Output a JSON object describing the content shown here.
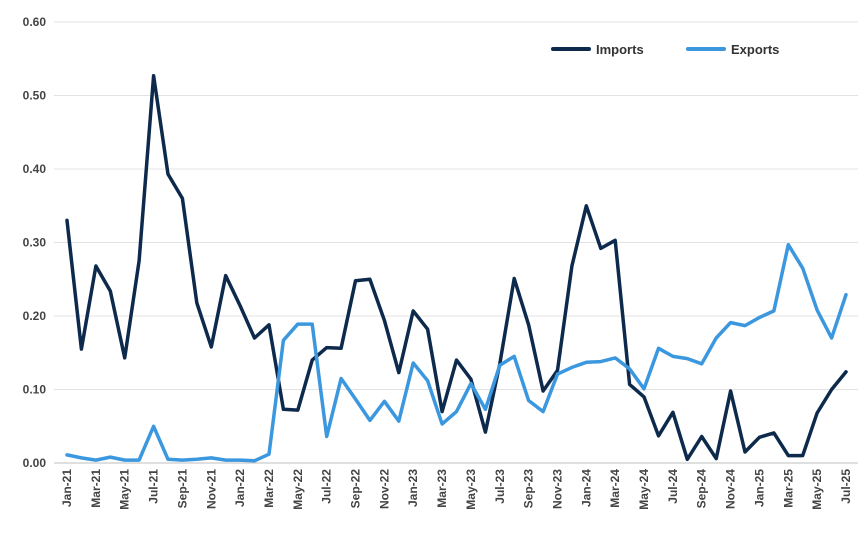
{
  "chart_data": {
    "type": "line",
    "title": "",
    "xlabel": "",
    "ylabel": "",
    "ylim": [
      0,
      0.6
    ],
    "yticks": [
      "0.00",
      "0.10",
      "0.20",
      "0.30",
      "0.40",
      "0.50",
      "0.60"
    ],
    "grid": "horizontal",
    "legend_position": "top-right",
    "x": [
      "Jan-21",
      "Feb-21",
      "Mar-21",
      "Apr-21",
      "May-21",
      "Jun-21",
      "Jul-21",
      "Aug-21",
      "Sep-21",
      "Oct-21",
      "Nov-21",
      "Dec-21",
      "Jan-22",
      "Feb-22",
      "Mar-22",
      "Apr-22",
      "May-22",
      "Jun-22",
      "Jul-22",
      "Aug-22",
      "Sep-22",
      "Oct-22",
      "Nov-22",
      "Dec-22",
      "Jan-23",
      "Feb-23",
      "Mar-23",
      "Apr-23",
      "May-23",
      "Jun-23",
      "Jul-23",
      "Aug-23",
      "Sep-23",
      "Oct-23",
      "Nov-23",
      "Dec-23",
      "Jan-24",
      "Feb-24",
      "Mar-24",
      "Apr-24",
      "May-24",
      "Jun-24",
      "Jul-24",
      "Aug-24",
      "Sep-24",
      "Oct-24",
      "Nov-24",
      "Dec-24",
      "Jan-25",
      "Feb-25",
      "Mar-25",
      "Apr-25",
      "May-25",
      "Jun-25",
      "Jul-25"
    ],
    "x_tick_labels": [
      "Jan-21",
      "Mar-21",
      "May-21",
      "Jul-21",
      "Sep-21",
      "Nov-21",
      "Jan-22",
      "Mar-22",
      "May-22",
      "Jul-22",
      "Sep-22",
      "Nov-22",
      "Jan-23",
      "Mar-23",
      "May-23",
      "Jul-23",
      "Sep-23",
      "Nov-23",
      "Jan-24",
      "Mar-24",
      "May-24",
      "Jul-24",
      "Sep-24",
      "Nov-24",
      "Jan-25",
      "Mar-25",
      "May-25",
      "Jul-25"
    ],
    "series": [
      {
        "name": "Imports",
        "color": "#0d2a4d",
        "values": [
          0.33,
          0.155,
          0.268,
          0.234,
          0.143,
          0.275,
          0.527,
          0.393,
          0.36,
          0.218,
          0.158,
          0.255,
          0.214,
          0.17,
          0.188,
          0.073,
          0.072,
          0.14,
          0.157,
          0.156,
          0.248,
          0.25,
          0.194,
          0.123,
          0.207,
          0.182,
          0.07,
          0.14,
          0.114,
          0.042,
          0.135,
          0.251,
          0.188,
          0.098,
          0.126,
          0.268,
          0.35,
          0.292,
          0.303,
          0.107,
          0.09,
          0.037,
          0.069,
          0.005,
          0.036,
          0.006,
          0.098,
          0.015,
          0.035,
          0.041,
          0.01,
          0.01,
          0.068,
          0.1,
          0.124
        ]
      },
      {
        "name": "Exports",
        "color": "#3b97de",
        "values": [
          0.011,
          0.007,
          0.004,
          0.008,
          0.004,
          0.004,
          0.05,
          0.005,
          0.004,
          0.005,
          0.007,
          0.004,
          0.004,
          0.003,
          0.012,
          0.167,
          0.189,
          0.189,
          0.036,
          0.115,
          0.087,
          0.058,
          0.084,
          0.057,
          0.136,
          0.112,
          0.053,
          0.07,
          0.108,
          0.073,
          0.133,
          0.145,
          0.085,
          0.07,
          0.121,
          0.13,
          0.137,
          0.138,
          0.143,
          0.128,
          0.101,
          0.156,
          0.145,
          0.142,
          0.135,
          0.17,
          0.191,
          0.187,
          0.198,
          0.207,
          0.297,
          0.265,
          0.208,
          0.17,
          0.229
        ]
      }
    ]
  }
}
